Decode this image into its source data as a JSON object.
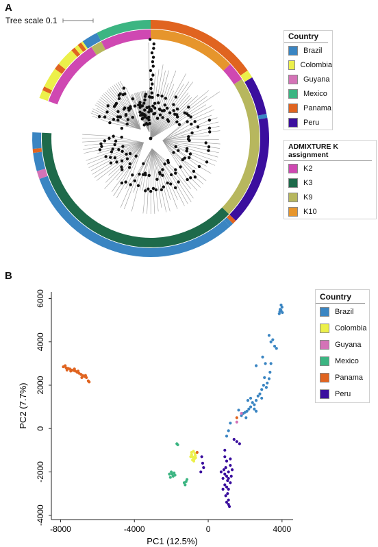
{
  "panel_a": {
    "letter": "A",
    "tree_scale_label": "Tree scale 0.1",
    "country_legend": {
      "title": "Country",
      "items": [
        {
          "label": "Brazil",
          "color": "#3a85c2"
        },
        {
          "label": "Colombia",
          "color": "#ecf04a"
        },
        {
          "label": "Guyana",
          "color": "#d473b7"
        },
        {
          "label": "Mexico",
          "color": "#3cb582"
        },
        {
          "label": "Panama",
          "color": "#e06420"
        },
        {
          "label": "Peru",
          "color": "#3b0f9e"
        }
      ]
    },
    "k_legend": {
      "title": "ADMIXTURE K assignment",
      "items": [
        {
          "label": "K2",
          "color": "#cf48b2"
        },
        {
          "label": "K3",
          "color": "#1e6a4a"
        },
        {
          "label": "K9",
          "color": "#b7b75e"
        },
        {
          "label": "K10",
          "color": "#e6952c"
        }
      ]
    }
  },
  "panel_b": {
    "letter": "B",
    "chart_data": {
      "type": "scatter",
      "xlabel": "PC1 (12.5%)",
      "ylabel": "PC2 (7.7%)",
      "xlim": [
        -8500,
        4600
      ],
      "ylim": [
        -4200,
        6300
      ],
      "x_ticks": [
        -8000,
        -4000,
        0,
        4000
      ],
      "y_ticks": [
        -4000,
        -2000,
        0,
        2000,
        4000,
        6000
      ],
      "legend": {
        "title": "Country",
        "placement": "top-right",
        "items": [
          {
            "label": "Brazil",
            "color": "#3a85c2"
          },
          {
            "label": "Colombia",
            "color": "#ecf04a"
          },
          {
            "label": "Guyana",
            "color": "#d473b7"
          },
          {
            "label": "Mexico",
            "color": "#3cb582"
          },
          {
            "label": "Panama",
            "color": "#e06420"
          },
          {
            "label": "Peru",
            "color": "#3b0f9e"
          }
        ]
      },
      "series": [
        {
          "label": "Brazil",
          "color": "#3a85c2",
          "points": [
            [
              3950,
              5700
            ],
            [
              3900,
              5500
            ],
            [
              4000,
              5600
            ],
            [
              3880,
              5400
            ],
            [
              3850,
              5300
            ],
            [
              3950,
              5450
            ],
            [
              4020,
              5350
            ],
            [
              3500,
              4100
            ],
            [
              3300,
              4300
            ],
            [
              3600,
              3800
            ],
            [
              3700,
              3700
            ],
            [
              3400,
              4000
            ],
            [
              2950,
              3300
            ],
            [
              3100,
              3000
            ],
            [
              3400,
              3000
            ],
            [
              2600,
              2900
            ],
            [
              3350,
              2600
            ],
            [
              3300,
              2300
            ],
            [
              3050,
              2350
            ],
            [
              3200,
              2100
            ],
            [
              3000,
              2000
            ],
            [
              3150,
              1900
            ],
            [
              2900,
              1800
            ],
            [
              2800,
              1600
            ],
            [
              2700,
              1500
            ],
            [
              2900,
              1400
            ],
            [
              2600,
              1300
            ],
            [
              2400,
              1200
            ],
            [
              2500,
              1100
            ],
            [
              2300,
              1000
            ],
            [
              2200,
              900
            ],
            [
              2100,
              800
            ],
            [
              2000,
              750
            ],
            [
              1900,
              700
            ],
            [
              1800,
              600
            ],
            [
              2300,
              1400
            ],
            [
              2150,
              1300
            ],
            [
              1650,
              850
            ],
            [
              1200,
              250
            ],
            [
              1100,
              -100
            ],
            [
              1000,
              -350
            ],
            [
              2600,
              800
            ],
            [
              2050,
              500
            ],
            [
              2500,
              900
            ]
          ]
        },
        {
          "label": "Colombia",
          "color": "#ecf04a",
          "points": [
            [
              -900,
              -1100
            ],
            [
              -850,
              -1300
            ],
            [
              -800,
              -1350
            ],
            [
              -900,
              -1200
            ],
            [
              -750,
              -1400
            ],
            [
              -700,
              -1250
            ],
            [
              -800,
              -1050
            ],
            [
              -850,
              -1450
            ],
            [
              -950,
              -1300
            ],
            [
              -720,
              -1150
            ],
            [
              -780,
              -1500
            ],
            [
              -680,
              -1350
            ]
          ]
        },
        {
          "label": "Guyana",
          "color": "#d473b7",
          "points": [
            [
              1800,
              700
            ],
            [
              1550,
              300
            ]
          ]
        },
        {
          "label": "Mexico",
          "color": "#3cb582",
          "points": [
            [
              -2000,
              -2000
            ],
            [
              -2100,
              -2100
            ],
            [
              -1900,
              -2200
            ],
            [
              -1850,
              -2050
            ],
            [
              -2050,
              -2250
            ],
            [
              -1950,
              -2100
            ],
            [
              -1800,
              -2150
            ],
            [
              -1250,
              -2600
            ],
            [
              -1200,
              -2450
            ],
            [
              -1300,
              -2500
            ],
            [
              -1150,
              -2350
            ],
            [
              -1700,
              -700
            ],
            [
              -1650,
              -750
            ]
          ]
        },
        {
          "label": "Panama",
          "color": "#e06420",
          "points": [
            [
              -7850,
              2850
            ],
            [
              -7700,
              2800
            ],
            [
              -7600,
              2780
            ],
            [
              -7500,
              2750
            ],
            [
              -7400,
              2700
            ],
            [
              -7300,
              2680
            ],
            [
              -7200,
              2650
            ],
            [
              -7100,
              2600
            ],
            [
              -7000,
              2550
            ],
            [
              -6900,
              2500
            ],
            [
              -6800,
              2450
            ],
            [
              -6700,
              2400
            ],
            [
              -6600,
              2350
            ],
            [
              -6500,
              2200
            ],
            [
              -6450,
              2150
            ],
            [
              -7750,
              2900
            ],
            [
              -7650,
              2700
            ],
            [
              -7450,
              2650
            ],
            [
              -7250,
              2750
            ],
            [
              -7050,
              2650
            ],
            [
              -6850,
              2350
            ],
            [
              -6650,
              2450
            ],
            [
              -600,
              -1100
            ],
            [
              1550,
              500
            ]
          ]
        },
        {
          "label": "Peru",
          "color": "#3b0f9e",
          "points": [
            [
              1400,
              -500
            ],
            [
              1550,
              -600
            ],
            [
              1700,
              -700
            ],
            [
              900,
              -1000
            ],
            [
              900,
              -1300
            ],
            [
              1000,
              -1500
            ],
            [
              950,
              -1800
            ],
            [
              1200,
              -1700
            ],
            [
              1300,
              -1900
            ],
            [
              1100,
              -2000
            ],
            [
              700,
              -2000
            ],
            [
              900,
              -2100
            ],
            [
              1000,
              -2200
            ],
            [
              1100,
              -2300
            ],
            [
              800,
              -2300
            ],
            [
              1200,
              -2500
            ],
            [
              900,
              -2600
            ],
            [
              1000,
              -2700
            ],
            [
              1100,
              -2800
            ],
            [
              800,
              -2800
            ],
            [
              1050,
              -3000
            ],
            [
              950,
              -3100
            ],
            [
              1100,
              -3300
            ],
            [
              1000,
              -3400
            ],
            [
              1100,
              -3500
            ],
            [
              1150,
              -3600
            ],
            [
              1050,
              -2400
            ],
            [
              850,
              -1900
            ],
            [
              1250,
              -2200
            ],
            [
              1200,
              -1400
            ],
            [
              -350,
              -1300
            ],
            [
              -300,
              -1600
            ],
            [
              -400,
              -2000
            ],
            [
              -250,
              -1800
            ]
          ]
        }
      ]
    }
  }
}
